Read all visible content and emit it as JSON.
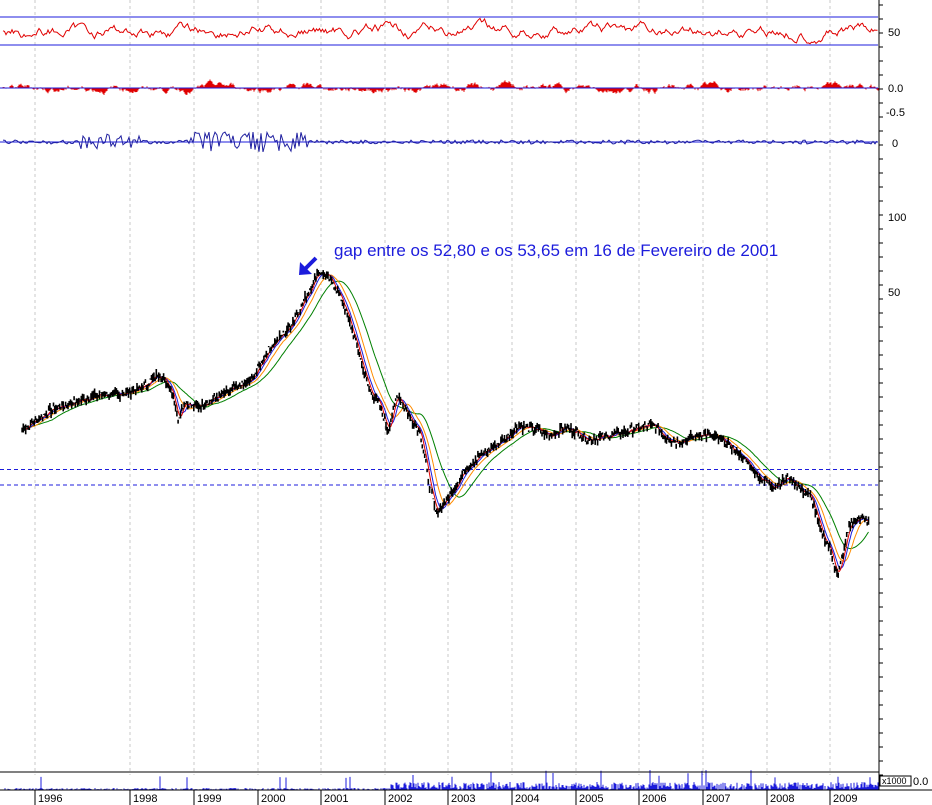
{
  "chart_data": {
    "type": "line",
    "annotation": "gap entre os 52,80 e os 53,65 em 16 de Fevereiro de 2001",
    "x_tick_labels": [
      "1996",
      "1998",
      "1999",
      "2000",
      "2001",
      "2002",
      "2003",
      "2004",
      "2005",
      "2006",
      "2007",
      "2008",
      "2009"
    ],
    "years": [
      1996.5,
      1998,
      1999,
      2000,
      2001,
      2002,
      2003,
      2004,
      2005,
      2006,
      2007,
      2008,
      2009
    ],
    "price_axis": {
      "scale": "log",
      "ticks": [
        100,
        50
      ],
      "tick_labels": [
        "100",
        "50"
      ]
    },
    "oscillator1_axis": {
      "tick_labels": [
        "50"
      ],
      "upper_band": 70,
      "lower_band": 30
    },
    "oscillator2_axis": {
      "tick_labels": [
        "0.0",
        "-0.5"
      ]
    },
    "oscillator3_axis": {
      "tick_labels": [
        "0"
      ]
    },
    "volume_axis": {
      "tick_labels": [
        "x1000",
        "0.0"
      ]
    },
    "support_levels": [
      9.7,
      8.4
    ],
    "price_series": {
      "name": "",
      "points": [
        [
          1996.3,
          14.0
        ],
        [
          1996.5,
          15.2
        ],
        [
          1996.8,
          17.0
        ],
        [
          1997.1,
          18.0
        ],
        [
          1997.5,
          19.3
        ],
        [
          1997.9,
          19.5
        ],
        [
          1998.2,
          20.8
        ],
        [
          1998.45,
          23.5
        ],
        [
          1998.65,
          20.5
        ],
        [
          1998.75,
          15.5
        ],
        [
          1998.85,
          18.2
        ],
        [
          1999.0,
          17.2
        ],
        [
          1999.3,
          18.6
        ],
        [
          1999.6,
          20.3
        ],
        [
          1999.9,
          22.0
        ],
        [
          2000.2,
          30.0
        ],
        [
          2000.5,
          36.0
        ],
        [
          2000.8,
          50.0
        ],
        [
          2000.95,
          60.0
        ],
        [
          2001.1,
          58.0
        ],
        [
          2001.2,
          53.5
        ],
        [
          2001.35,
          45.0
        ],
        [
          2001.55,
          31.0
        ],
        [
          2001.75,
          20.5
        ],
        [
          2001.9,
          18.0
        ],
        [
          2002.05,
          14.0
        ],
        [
          2002.2,
          19.5
        ],
        [
          2002.4,
          15.5
        ],
        [
          2002.55,
          14.0
        ],
        [
          2002.7,
          8.5
        ],
        [
          2002.8,
          6.5
        ],
        [
          2003.0,
          7.5
        ],
        [
          2003.3,
          10.0
        ],
        [
          2003.6,
          11.5
        ],
        [
          2003.9,
          13.0
        ],
        [
          2004.1,
          14.5
        ],
        [
          2004.4,
          14.0
        ],
        [
          2004.6,
          13.2
        ],
        [
          2004.8,
          14.3
        ],
        [
          2005.0,
          13.8
        ],
        [
          2005.2,
          12.8
        ],
        [
          2005.5,
          13.2
        ],
        [
          2005.8,
          13.8
        ],
        [
          2006.0,
          14.2
        ],
        [
          2006.2,
          14.7
        ],
        [
          2006.4,
          13.2
        ],
        [
          2006.6,
          12.5
        ],
        [
          2006.8,
          13.0
        ],
        [
          2007.0,
          13.5
        ],
        [
          2007.3,
          12.8
        ],
        [
          2007.6,
          11.0
        ],
        [
          2007.9,
          9.0
        ],
        [
          2008.1,
          8.3
        ],
        [
          2008.35,
          9.0
        ],
        [
          2008.55,
          8.0
        ],
        [
          2008.7,
          7.5
        ],
        [
          2008.85,
          5.5
        ],
        [
          2009.0,
          4.6
        ],
        [
          2009.12,
          3.6
        ],
        [
          2009.3,
          5.8
        ],
        [
          2009.5,
          6.2
        ],
        [
          2009.6,
          6.0
        ]
      ]
    }
  }
}
